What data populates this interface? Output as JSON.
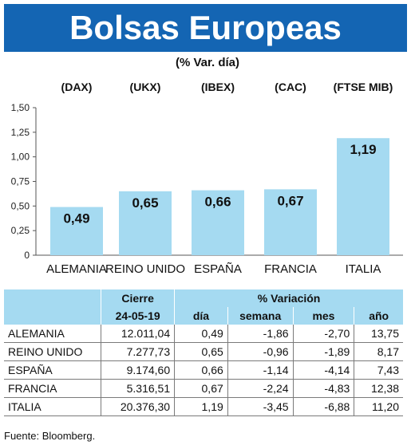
{
  "title": "Bolsas Europeas",
  "subtitle": "(% Var. día)",
  "indices": [
    "(DAX)",
    "(UKX)",
    "(IBEX)",
    "(CAC)",
    "(FTSE MIB)"
  ],
  "chart_data": {
    "type": "bar",
    "title": "Bolsas Europeas",
    "subtitle": "(% Var. día)",
    "categories": [
      "ALEMANIA",
      "REINO UNIDO",
      "ESPAÑA",
      "FRANCIA",
      "ITALIA"
    ],
    "values": [
      0.49,
      0.65,
      0.66,
      0.67,
      1.19
    ],
    "value_labels": [
      "0,49",
      "0,65",
      "0,66",
      "0,67",
      "1,19"
    ],
    "ylim": [
      0,
      1.5
    ],
    "yticks": [
      "0",
      "0,25",
      "0,50",
      "0,75",
      "1,00",
      "1,25",
      "1,50"
    ],
    "bar_color": "#a5daf1",
    "grid": false
  },
  "table": {
    "header_cierre": "Cierre",
    "header_variacion": "% Variación",
    "date": "24-05-19",
    "col_dia": "día",
    "col_semana": "semana",
    "col_mes": "mes",
    "col_ano": "año",
    "rows": [
      {
        "country": "ALEMANIA",
        "cierre": "12.011,04",
        "dia": "0,49",
        "semana": "-1,86",
        "mes": "-2,70",
        "ano": "13,75"
      },
      {
        "country": "REINO UNIDO",
        "cierre": "7.277,73",
        "dia": "0,65",
        "semana": "-0,96",
        "mes": "-1,89",
        "ano": "8,17"
      },
      {
        "country": "ESPAÑA",
        "cierre": "9.174,60",
        "dia": "0,66",
        "semana": "-1,14",
        "mes": "-4,14",
        "ano": "7,43"
      },
      {
        "country": "FRANCIA",
        "cierre": "5.316,51",
        "dia": "0,67",
        "semana": "-2,24",
        "mes": "-4,83",
        "ano": "12,38"
      },
      {
        "country": "ITALIA",
        "cierre": "20.376,30",
        "dia": "1,19",
        "semana": "-3,45",
        "mes": "-6,88",
        "ano": "11,20"
      }
    ]
  },
  "source": "Fuente: Bloomberg.",
  "colors": {
    "header_blue": "#1465b3",
    "light_blue": "#a5daf1"
  }
}
